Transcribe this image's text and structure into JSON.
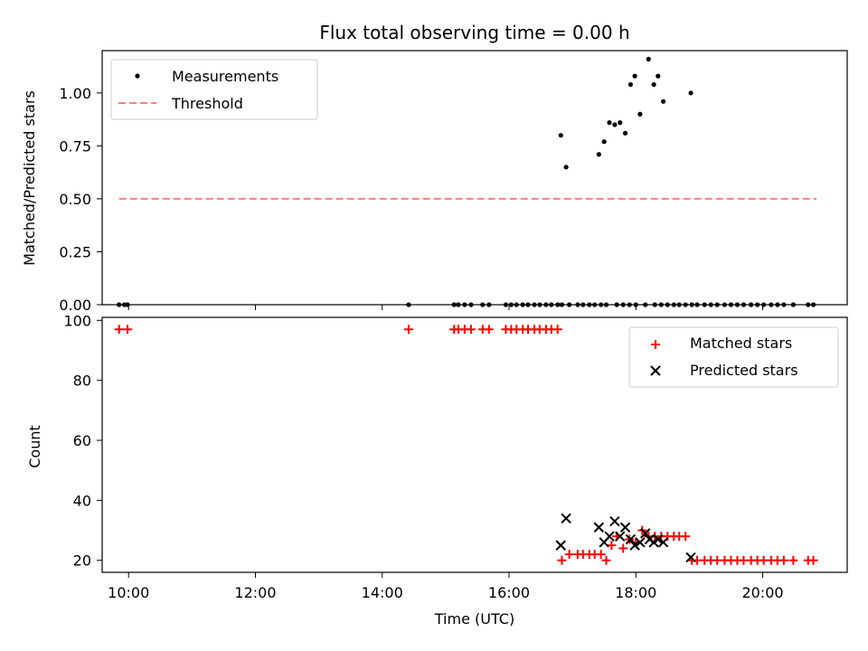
{
  "chart_data": [
    {
      "type": "scatter",
      "title": "Flux total observing time = 0.00 h",
      "xlabel": "",
      "ylabel": "Matched/Predicted stars",
      "xlim": [
        "09:35",
        "21:20"
      ],
      "ylim": [
        0,
        1.2
      ],
      "yticks": [
        0.0,
        0.25,
        0.5,
        0.75,
        1.0
      ],
      "ytick_labels": [
        "0.00",
        "0.25",
        "0.50",
        "0.75",
        "1.00"
      ],
      "grid": false,
      "legend": {
        "position": "top-left"
      },
      "series": [
        {
          "name": "Measurements",
          "marker": "dot",
          "color": "#000000",
          "x": [
            "09:51",
            "09:56",
            "09:59",
            "14:25",
            "15:08",
            "15:12",
            "15:18",
            "15:24",
            "15:35",
            "15:41",
            "15:57",
            "16:02",
            "16:07",
            "16:13",
            "16:18",
            "16:24",
            "16:29",
            "16:35",
            "16:40",
            "16:46",
            "16:50",
            "16:57",
            "17:05",
            "17:10",
            "17:16",
            "17:21",
            "17:27",
            "17:32",
            "17:42",
            "17:48",
            "17:54",
            "18:00",
            "18:09",
            "18:18",
            "18:24",
            "18:30",
            "18:36",
            "18:41",
            "18:47",
            "18:53",
            "18:58",
            "19:05",
            "19:11",
            "19:17",
            "19:24",
            "19:30",
            "19:36",
            "19:42",
            "19:49",
            "19:55",
            "20:01",
            "20:08",
            "20:14",
            "20:20",
            "20:29",
            "20:43",
            "20:48",
            "16:49",
            "16:54",
            "17:25",
            "17:30",
            "17:35",
            "17:40",
            "17:45",
            "17:50",
            "17:55",
            "17:59",
            "18:04",
            "18:12",
            "18:17",
            "18:21",
            "18:26",
            "18:52"
          ],
          "y": [
            0,
            0,
            0,
            0,
            0,
            0,
            0,
            0,
            0,
            0,
            0,
            0,
            0,
            0,
            0,
            0,
            0,
            0,
            0,
            0,
            0,
            0,
            0,
            0,
            0,
            0,
            0,
            0,
            0,
            0,
            0,
            0,
            0,
            0,
            0,
            0,
            0,
            0,
            0,
            0,
            0,
            0,
            0,
            0,
            0,
            0,
            0,
            0,
            0,
            0,
            0,
            0,
            0,
            0,
            0,
            0,
            0,
            0.8,
            0.65,
            0.71,
            0.77,
            0.86,
            0.85,
            0.86,
            0.81,
            1.04,
            1.08,
            0.9,
            1.16,
            1.04,
            1.08,
            0.96,
            1.0
          ]
        },
        {
          "name": "Threshold",
          "style": "dashed",
          "color": "#ff7f7f",
          "x": [
            "09:51",
            "20:51"
          ],
          "y": [
            0.5,
            0.5
          ]
        }
      ]
    },
    {
      "type": "scatter",
      "title": "",
      "xlabel": "Time (UTC)",
      "ylabel": "Count",
      "xlim": [
        "09:35",
        "21:20"
      ],
      "ylim": [
        16,
        101
      ],
      "xticks": [
        "10:00",
        "12:00",
        "14:00",
        "16:00",
        "18:00",
        "20:00"
      ],
      "yticks": [
        20,
        40,
        60,
        80,
        100
      ],
      "ytick_labels": [
        "20",
        "40",
        "60",
        "80",
        "100"
      ],
      "grid": false,
      "legend": {
        "position": "top-right"
      },
      "series": [
        {
          "name": "Matched stars",
          "marker": "plus",
          "color": "#ff0000",
          "x": [
            "09:51",
            "09:59",
            "14:25",
            "15:08",
            "15:12",
            "15:18",
            "15:24",
            "15:35",
            "15:41",
            "15:57",
            "16:02",
            "16:07",
            "16:13",
            "16:18",
            "16:24",
            "16:29",
            "16:35",
            "16:40",
            "16:46",
            "16:50",
            "16:57",
            "17:05",
            "17:10",
            "17:16",
            "17:21",
            "17:27",
            "17:32",
            "17:37",
            "17:42",
            "17:48",
            "17:54",
            "18:00",
            "18:06",
            "18:12",
            "18:18",
            "18:24",
            "18:30",
            "18:36",
            "18:41",
            "18:47",
            "18:53",
            "18:58",
            "19:05",
            "19:11",
            "19:17",
            "19:24",
            "19:30",
            "19:36",
            "19:42",
            "19:49",
            "19:55",
            "20:01",
            "20:08",
            "20:14",
            "20:20",
            "20:29",
            "20:43",
            "20:48"
          ],
          "y": [
            97,
            97,
            97,
            97,
            97,
            97,
            97,
            97,
            97,
            97,
            97,
            97,
            97,
            97,
            97,
            97,
            97,
            97,
            97,
            20,
            22,
            22,
            22,
            22,
            22,
            22,
            20,
            25,
            28,
            24,
            27,
            26,
            30,
            28,
            28,
            28,
            28,
            28,
            28,
            28,
            20,
            20,
            20,
            20,
            20,
            20,
            20,
            20,
            20,
            20,
            20,
            20,
            20,
            20,
            20,
            20,
            20,
            20
          ]
        },
        {
          "name": "Predicted stars",
          "marker": "x",
          "color": "#000000",
          "x": [
            "16:49",
            "16:54",
            "17:25",
            "17:30",
            "17:35",
            "17:40",
            "17:45",
            "17:50",
            "17:55",
            "17:59",
            "18:04",
            "18:09",
            "18:13",
            "18:17",
            "18:21",
            "18:26",
            "18:52"
          ],
          "y": [
            25,
            34,
            31,
            26,
            28,
            33,
            28,
            31,
            27,
            25,
            26,
            29,
            27,
            26,
            27,
            26,
            21
          ]
        }
      ]
    }
  ]
}
